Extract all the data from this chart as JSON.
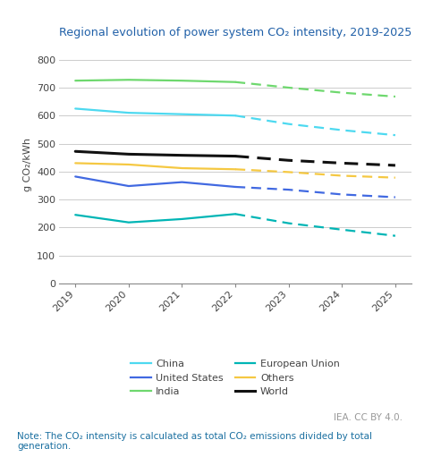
{
  "title": "Regional evolution of power system CO₂ intensity, 2019-2025",
  "ylabel": "g CO₂/kWh",
  "years_solid": [
    2019,
    2020,
    2021,
    2022
  ],
  "years_dashed": [
    2022,
    2023,
    2024,
    2025
  ],
  "series": {
    "China": {
      "color": "#4DD9F0",
      "solid": [
        625,
        610,
        605,
        600
      ],
      "dashed": [
        600,
        570,
        548,
        530
      ]
    },
    "India": {
      "color": "#6ED86E",
      "solid": [
        725,
        728,
        725,
        720
      ],
      "dashed": [
        720,
        700,
        682,
        668
      ]
    },
    "United States": {
      "color": "#4169E1",
      "solid": [
        382,
        348,
        362,
        345
      ],
      "dashed": [
        345,
        335,
        318,
        308
      ]
    },
    "European Union": {
      "color": "#00B5B5",
      "solid": [
        245,
        218,
        230,
        248
      ],
      "dashed": [
        248,
        215,
        192,
        170
      ]
    },
    "Others": {
      "color": "#F5C842",
      "solid": [
        430,
        425,
        412,
        408
      ],
      "dashed": [
        408,
        398,
        385,
        378
      ]
    },
    "World": {
      "color": "#111111",
      "solid": [
        472,
        462,
        458,
        455
      ],
      "dashed": [
        455,
        440,
        430,
        422
      ]
    }
  },
  "ylim": [
    0,
    850
  ],
  "yticks": [
    0,
    100,
    200,
    300,
    400,
    500,
    600,
    700,
    800
  ],
  "xlim": [
    2018.7,
    2025.3
  ],
  "note": "Note: The CO₂ intensity is calculated as total CO₂ emissions divided by total\ngeneration.",
  "credit": "IEA. CC BY 4.0.",
  "legend_col1": [
    "China",
    "India",
    "Others"
  ],
  "legend_col2": [
    "United States",
    "European Union",
    "World"
  ],
  "title_color": "#2060A8",
  "background_color": "#FFFFFF",
  "grid_color": "#CCCCCC",
  "note_color": "#1A6FA0",
  "credit_color": "#999999",
  "ylabel_color": "#444444",
  "tick_color": "#444444"
}
